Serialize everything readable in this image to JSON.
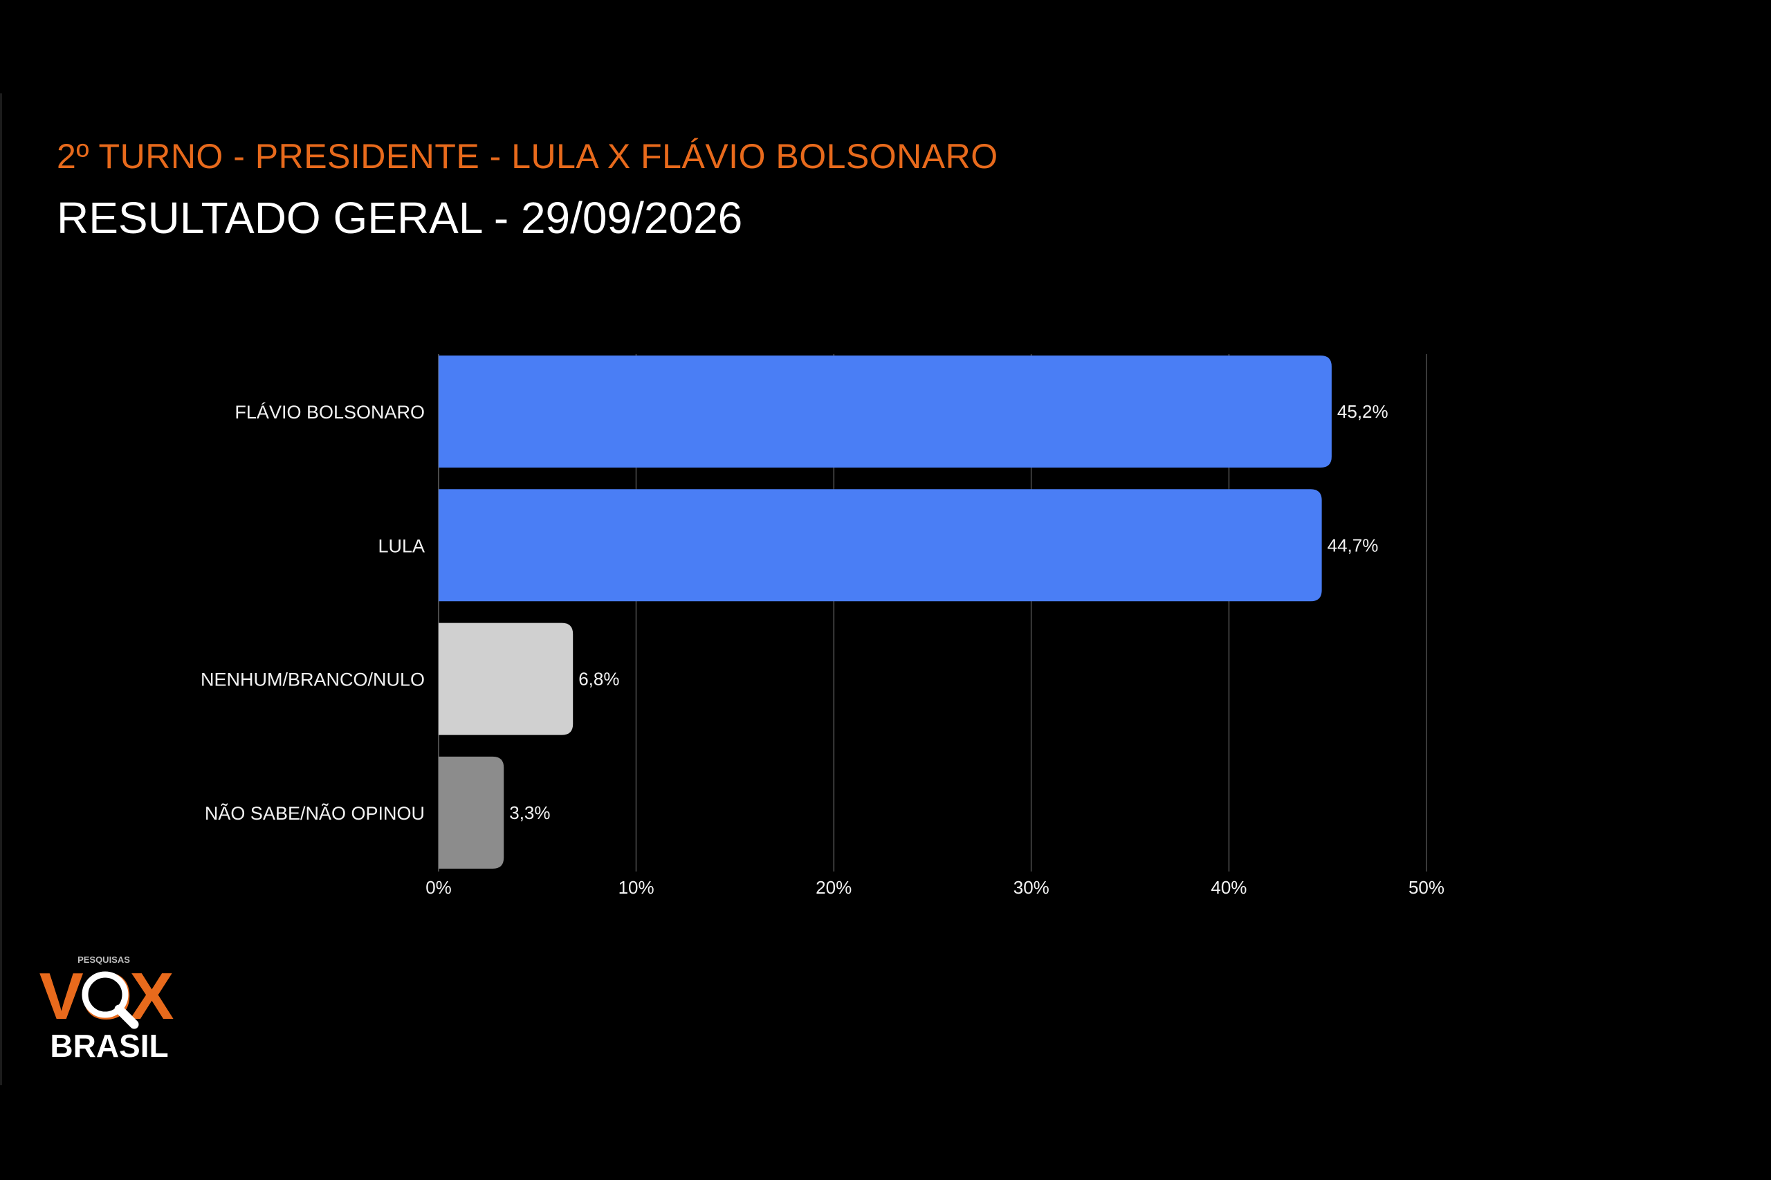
{
  "header": {
    "kicker": "2º TURNO - PRESIDENTE - LULA X FLÁVIO BOLSONARO",
    "title": "RESULTADO GERAL - 29/09/2026"
  },
  "colors": {
    "background": "#000000",
    "accent": "#e86a1c",
    "title": "#ffffff",
    "text": "#f2f2f2",
    "grid": "#3a3a3a"
  },
  "chart_data": {
    "type": "bar",
    "orientation": "horizontal",
    "categories": [
      "FLÁVIO BOLSONARO",
      "LULA",
      "NENHUM/BRANCO/NULO",
      "NÃO SABE/NÃO OPINOU"
    ],
    "values": [
      45.2,
      44.7,
      6.8,
      3.3
    ],
    "value_labels": [
      "45,2%",
      "44,7%",
      "6,8%",
      "3,3%"
    ],
    "bar_colors": [
      "#4a7ef5",
      "#4a7ef5",
      "#d0d0d0",
      "#8c8c8c"
    ],
    "xlim": [
      0,
      50
    ],
    "xticks": [
      0,
      10,
      20,
      30,
      40,
      50
    ],
    "xtick_labels": [
      "0%",
      "10%",
      "20%",
      "30%",
      "40%",
      "50%"
    ],
    "grid": true,
    "legend": "none"
  },
  "logo": {
    "top_text": "PESQUISAS",
    "main_text": "VOX",
    "sub_text": "BRASIL",
    "icon": "magnifier-icon"
  }
}
